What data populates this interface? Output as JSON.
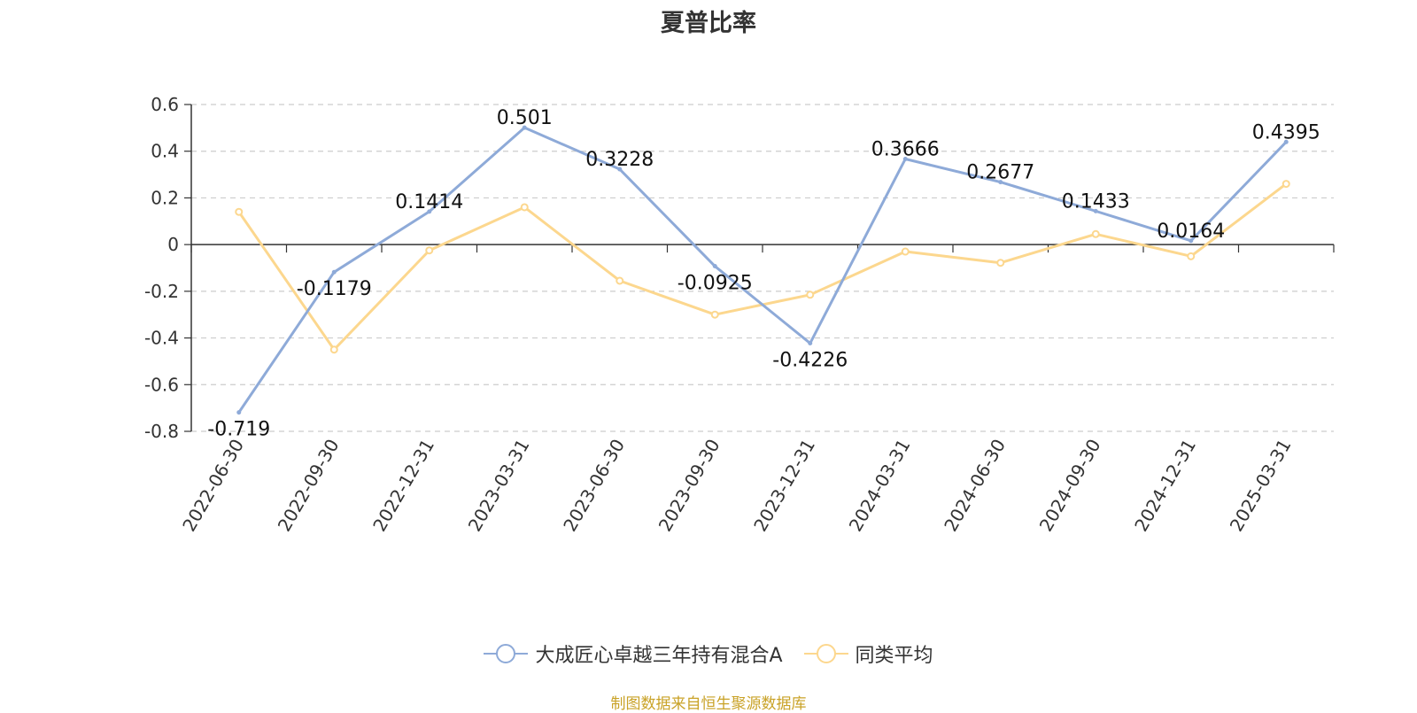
{
  "chart_data": {
    "type": "line",
    "title": "夏普比率",
    "categories": [
      "2022-06-30",
      "2022-09-30",
      "2022-12-31",
      "2023-03-31",
      "2023-06-30",
      "2023-09-30",
      "2023-12-31",
      "2024-03-31",
      "2024-06-30",
      "2024-09-30",
      "2024-12-31",
      "2025-03-31"
    ],
    "series": [
      {
        "name": "大成匠心卓越三年持有混合A",
        "color": "#8eaad8",
        "values": [
          -0.719,
          -0.1179,
          0.1414,
          0.501,
          0.3228,
          -0.0925,
          -0.4226,
          0.3666,
          0.2677,
          0.1433,
          0.0164,
          0.4395
        ],
        "labels": [
          "-0.719",
          "-0.1179",
          "0.1414",
          "0.501",
          "0.3228",
          "-0.0925",
          "-0.4226",
          "0.3666",
          "0.2677",
          "0.1433",
          "0.0164",
          "0.4395"
        ]
      },
      {
        "name": "同类平均",
        "color": "#fcd78e",
        "values": [
          0.14,
          -0.45,
          -0.025,
          0.16,
          -0.155,
          -0.3,
          -0.215,
          -0.03,
          -0.078,
          0.045,
          -0.05,
          0.26
        ]
      }
    ],
    "ylim": [
      -0.8,
      0.6
    ],
    "yticks": [
      0.6,
      0.4,
      0.2,
      0,
      -0.2,
      -0.4,
      -0.6,
      -0.8
    ],
    "ytick_labels": [
      "0.6",
      "0.4",
      "0.2",
      "0",
      "-0.2",
      "-0.4",
      "-0.6",
      "-0.8"
    ],
    "grid": true,
    "legend_position": "bottom-center"
  },
  "source_note": "制图数据来自恒生聚源数据库",
  "colors": {
    "axis": "#333333",
    "grid": "#cccccc",
    "source": "#c9a227"
  }
}
